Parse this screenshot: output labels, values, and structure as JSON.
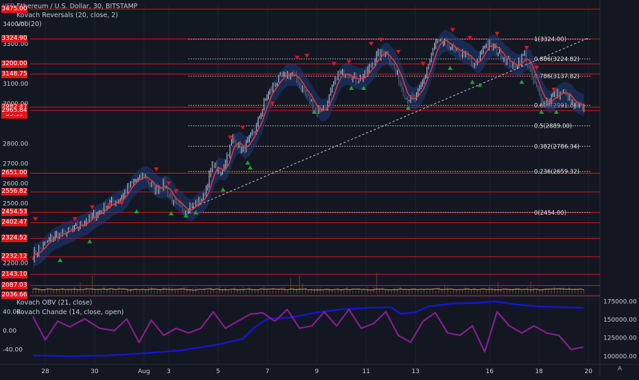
{
  "header": {
    "title": "Ethereum / U.S. Dollar, 30, BITSTAMP",
    "indicator1": "Kovach Reversals (20, close, 2)",
    "indicator2": "Vol (20)",
    "currency": "USD"
  },
  "lower_pane": {
    "indicator1": "Kovach OBV (21, close)",
    "indicator2": "Kovach Chande (14, close, open)"
  },
  "countdown": "09:31",
  "corner_label": "A",
  "colors": {
    "background": "#131722",
    "level_line": "#e0161b",
    "ma": "#e53935",
    "band": "#1f3a7a",
    "obv": "#1515d6",
    "chande": "#8a1e8e",
    "volume": "#d9a05b"
  },
  "chart_data": [
    {
      "type": "candlestick",
      "title": "Ethereum / U.S. Dollar, 30, BITSTAMP",
      "yaxis": {
        "range": [
          2040,
          3500
        ],
        "ticks": [
          "3400.00",
          "3300.00",
          "3100.00",
          "3000.00",
          "2800.00",
          "2700.00",
          "2600.00",
          "2500.00",
          "2200.00"
        ]
      },
      "xaxis": {
        "range": [
          27.5,
          20.3
        ],
        "ticks": [
          {
            "x": 28,
            "label": "28"
          },
          {
            "x": 30,
            "label": "30"
          },
          {
            "x": 32,
            "label": "Aug"
          },
          {
            "x": 33,
            "label": "3"
          },
          {
            "x": 35,
            "label": "5"
          },
          {
            "x": 37,
            "label": "7"
          },
          {
            "x": 39,
            "label": "9"
          },
          {
            "x": 41,
            "label": "11"
          },
          {
            "x": 43,
            "label": "13"
          },
          {
            "x": 46,
            "label": "16"
          },
          {
            "x": 48,
            "label": "18"
          },
          {
            "x": 50,
            "label": "20"
          }
        ]
      },
      "price_path": [
        [
          27.5,
          2240
        ],
        [
          28.3,
          2330
        ],
        [
          29,
          2360
        ],
        [
          29.5,
          2400
        ],
        [
          30,
          2440
        ],
        [
          30.5,
          2490
        ],
        [
          31,
          2520
        ],
        [
          31.5,
          2600
        ],
        [
          32,
          2640
        ],
        [
          32.4,
          2570
        ],
        [
          32.8,
          2600
        ],
        [
          33.2,
          2500
        ],
        [
          33.6,
          2470
        ],
        [
          34,
          2490
        ],
        [
          34.4,
          2530
        ],
        [
          34.8,
          2700
        ],
        [
          35.1,
          2640
        ],
        [
          35.6,
          2830
        ],
        [
          36,
          2760
        ],
        [
          36.5,
          2870
        ],
        [
          37,
          3050
        ],
        [
          37.5,
          3130
        ],
        [
          38,
          3150
        ],
        [
          38.5,
          3060
        ],
        [
          39,
          2960
        ],
        [
          39.4,
          2990
        ],
        [
          39.8,
          3140
        ],
        [
          40.2,
          3160
        ],
        [
          40.6,
          3120
        ],
        [
          41,
          3150
        ],
        [
          41.4,
          3240
        ],
        [
          41.8,
          3260
        ],
        [
          42.2,
          3160
        ],
        [
          42.6,
          3030
        ],
        [
          43,
          3020
        ],
        [
          43.4,
          3150
        ],
        [
          43.8,
          3300
        ],
        [
          44.2,
          3310
        ],
        [
          44.6,
          3260
        ],
        [
          45,
          3250
        ],
        [
          45.4,
          3180
        ],
        [
          45.8,
          3300
        ],
        [
          46.2,
          3280
        ],
        [
          46.6,
          3230
        ],
        [
          47,
          3180
        ],
        [
          47.4,
          3250
        ],
        [
          47.8,
          3100
        ],
        [
          48.2,
          3000
        ],
        [
          48.6,
          3040
        ],
        [
          49,
          3060
        ],
        [
          49.4,
          2990
        ],
        [
          49.8,
          2982
        ]
      ],
      "price_levels": [
        {
          "value": 3475,
          "label": "3475.00"
        },
        {
          "value": 3324.9,
          "label": "3324.90"
        },
        {
          "value": 3200,
          "label": "3200.00"
        },
        {
          "value": 3148.75,
          "label": "3148.75"
        },
        {
          "value": 2982.47,
          "label": "2982.47"
        },
        {
          "value": 2965.84,
          "label": "2965.84"
        },
        {
          "value": 2651,
          "label": "2651.00"
        },
        {
          "value": 2556.82,
          "label": "2556.82"
        },
        {
          "value": 2454.53,
          "label": "2454.53"
        },
        {
          "value": 2402.47,
          "label": "2402.47"
        },
        {
          "value": 2324.52,
          "label": "2324.52"
        },
        {
          "value": 2232.12,
          "label": "2232.12"
        },
        {
          "value": 2143.1,
          "label": "2143.10"
        },
        {
          "value": 2087.03,
          "label": "2087.03"
        },
        {
          "value": 2036.66,
          "label": "2036.66"
        }
      ],
      "fibonacci": [
        {
          "value": 3324,
          "label": "1(3324.00)"
        },
        {
          "value": 3224.82,
          "label": "0.886(3224.82)"
        },
        {
          "value": 3137.82,
          "label": "0.786(3137.82)"
        },
        {
          "value": 2991.66,
          "label": "0.618(2991.66)"
        },
        {
          "value": 2889,
          "label": "0.5(2889.00)"
        },
        {
          "value": 2786.34,
          "label": "0.382(2786.34)"
        },
        {
          "value": 2659.32,
          "label": "0.236(2659.32)"
        },
        {
          "value": 2454,
          "label": "0(2454.00)"
        }
      ],
      "trendline": {
        "from": [
          33.8,
          2470
        ],
        "to": [
          50,
          3330
        ]
      },
      "reversal_up": [
        [
          28.6,
          2215
        ],
        [
          29.8,
          2310
        ],
        [
          31.7,
          2460
        ],
        [
          33.1,
          2450
        ],
        [
          33.7,
          2440
        ],
        [
          34.1,
          2455
        ],
        [
          35.2,
          2570
        ],
        [
          36.2,
          2705
        ],
        [
          36.3,
          2680
        ],
        [
          38.9,
          2960
        ],
        [
          40.4,
          3080
        ],
        [
          40.9,
          3080
        ],
        [
          42.7,
          2980
        ],
        [
          44.4,
          3180
        ],
        [
          45.3,
          3110
        ],
        [
          45.6,
          3095
        ],
        [
          47.3,
          3110
        ],
        [
          48.1,
          2960
        ],
        [
          48.7,
          2960
        ]
      ],
      "reversal_down": [
        [
          27.6,
          2420
        ],
        [
          29.2,
          2420
        ],
        [
          29.9,
          2480
        ],
        [
          30.6,
          2490
        ],
        [
          31.1,
          2500
        ],
        [
          32.5,
          2670
        ],
        [
          33,
          2600
        ],
        [
          33.3,
          2560
        ],
        [
          35.5,
          2830
        ],
        [
          36,
          2880
        ],
        [
          37.2,
          3000
        ],
        [
          38.2,
          3230
        ],
        [
          38.6,
          3240
        ],
        [
          39.7,
          3200
        ],
        [
          40.3,
          3210
        ],
        [
          41.2,
          3300
        ],
        [
          41.6,
          3320
        ],
        [
          42.3,
          3260
        ],
        [
          43.3,
          3200
        ],
        [
          44.5,
          3370
        ],
        [
          45.2,
          3330
        ],
        [
          46.3,
          3350
        ],
        [
          47.5,
          3280
        ],
        [
          47.9,
          3180
        ],
        [
          48.6,
          3070
        ]
      ]
    },
    {
      "type": "line",
      "yaxis_left": {
        "range": [
          -70,
          70
        ],
        "ticks": [
          {
            "value": 40,
            "label": "40.00"
          },
          {
            "value": 0,
            "label": "0.00"
          },
          {
            "value": -40,
            "label": "-40.00"
          }
        ]
      },
      "yaxis_right": {
        "range": [
          90000,
          180000
        ],
        "ticks": [
          {
            "value": 175000,
            "label": "175000.00"
          },
          {
            "value": 150000,
            "label": "150000.00"
          },
          {
            "value": 125000,
            "label": "125000.00"
          },
          {
            "value": 100000,
            "label": "100000.00"
          }
        ]
      },
      "series": [
        {
          "name": "Kovach OBV (21, close)",
          "axis": "right",
          "points": [
            [
              27.5,
              101000
            ],
            [
              29,
              100000
            ],
            [
              30.5,
              101000
            ],
            [
              32,
              104000
            ],
            [
              33.5,
              108000
            ],
            [
              35,
              116000
            ],
            [
              36,
              124000
            ],
            [
              36.5,
              140000
            ],
            [
              37,
              151000
            ],
            [
              38,
              153000
            ],
            [
              39,
              160000
            ],
            [
              40,
              164000
            ],
            [
              41,
              166000
            ],
            [
              42,
              167000
            ],
            [
              42.4,
              158000
            ],
            [
              43,
              160000
            ],
            [
              43.5,
              168000
            ],
            [
              44.5,
              172000
            ],
            [
              45.5,
              173000
            ],
            [
              46.2,
              175000
            ],
            [
              47,
              171000
            ],
            [
              48,
              168000
            ],
            [
              49,
              167000
            ],
            [
              49.8,
              166000
            ]
          ]
        },
        {
          "name": "Kovach Chande (14, close, open)",
          "axis": "left",
          "points": [
            [
              27.5,
              30
            ],
            [
              28,
              -20
            ],
            [
              28.5,
              20
            ],
            [
              29,
              8
            ],
            [
              29.6,
              25
            ],
            [
              30.2,
              5
            ],
            [
              30.8,
              0
            ],
            [
              31.3,
              25
            ],
            [
              31.8,
              -25
            ],
            [
              32.3,
              22
            ],
            [
              32.8,
              -10
            ],
            [
              33.3,
              5
            ],
            [
              33.8,
              -5
            ],
            [
              34.3,
              5
            ],
            [
              34.8,
              40
            ],
            [
              35.3,
              5
            ],
            [
              35.8,
              20
            ],
            [
              36.3,
              35
            ],
            [
              36.8,
              38
            ],
            [
              37.3,
              20
            ],
            [
              37.8,
              45
            ],
            [
              38.3,
              5
            ],
            [
              38.8,
              10
            ],
            [
              39.3,
              40
            ],
            [
              39.8,
              10
            ],
            [
              40.3,
              45
            ],
            [
              40.8,
              5
            ],
            [
              41.3,
              15
            ],
            [
              41.8,
              40
            ],
            [
              42.3,
              -10
            ],
            [
              42.8,
              -25
            ],
            [
              43.3,
              20
            ],
            [
              43.8,
              38
            ],
            [
              44.3,
              -5
            ],
            [
              44.8,
              -10
            ],
            [
              45.3,
              10
            ],
            [
              45.8,
              -45
            ],
            [
              46.3,
              40
            ],
            [
              46.8,
              10
            ],
            [
              47.3,
              -5
            ],
            [
              47.8,
              10
            ],
            [
              48.3,
              -5
            ],
            [
              48.8,
              -10
            ],
            [
              49.3,
              -40
            ],
            [
              49.8,
              -35
            ]
          ]
        }
      ]
    }
  ]
}
